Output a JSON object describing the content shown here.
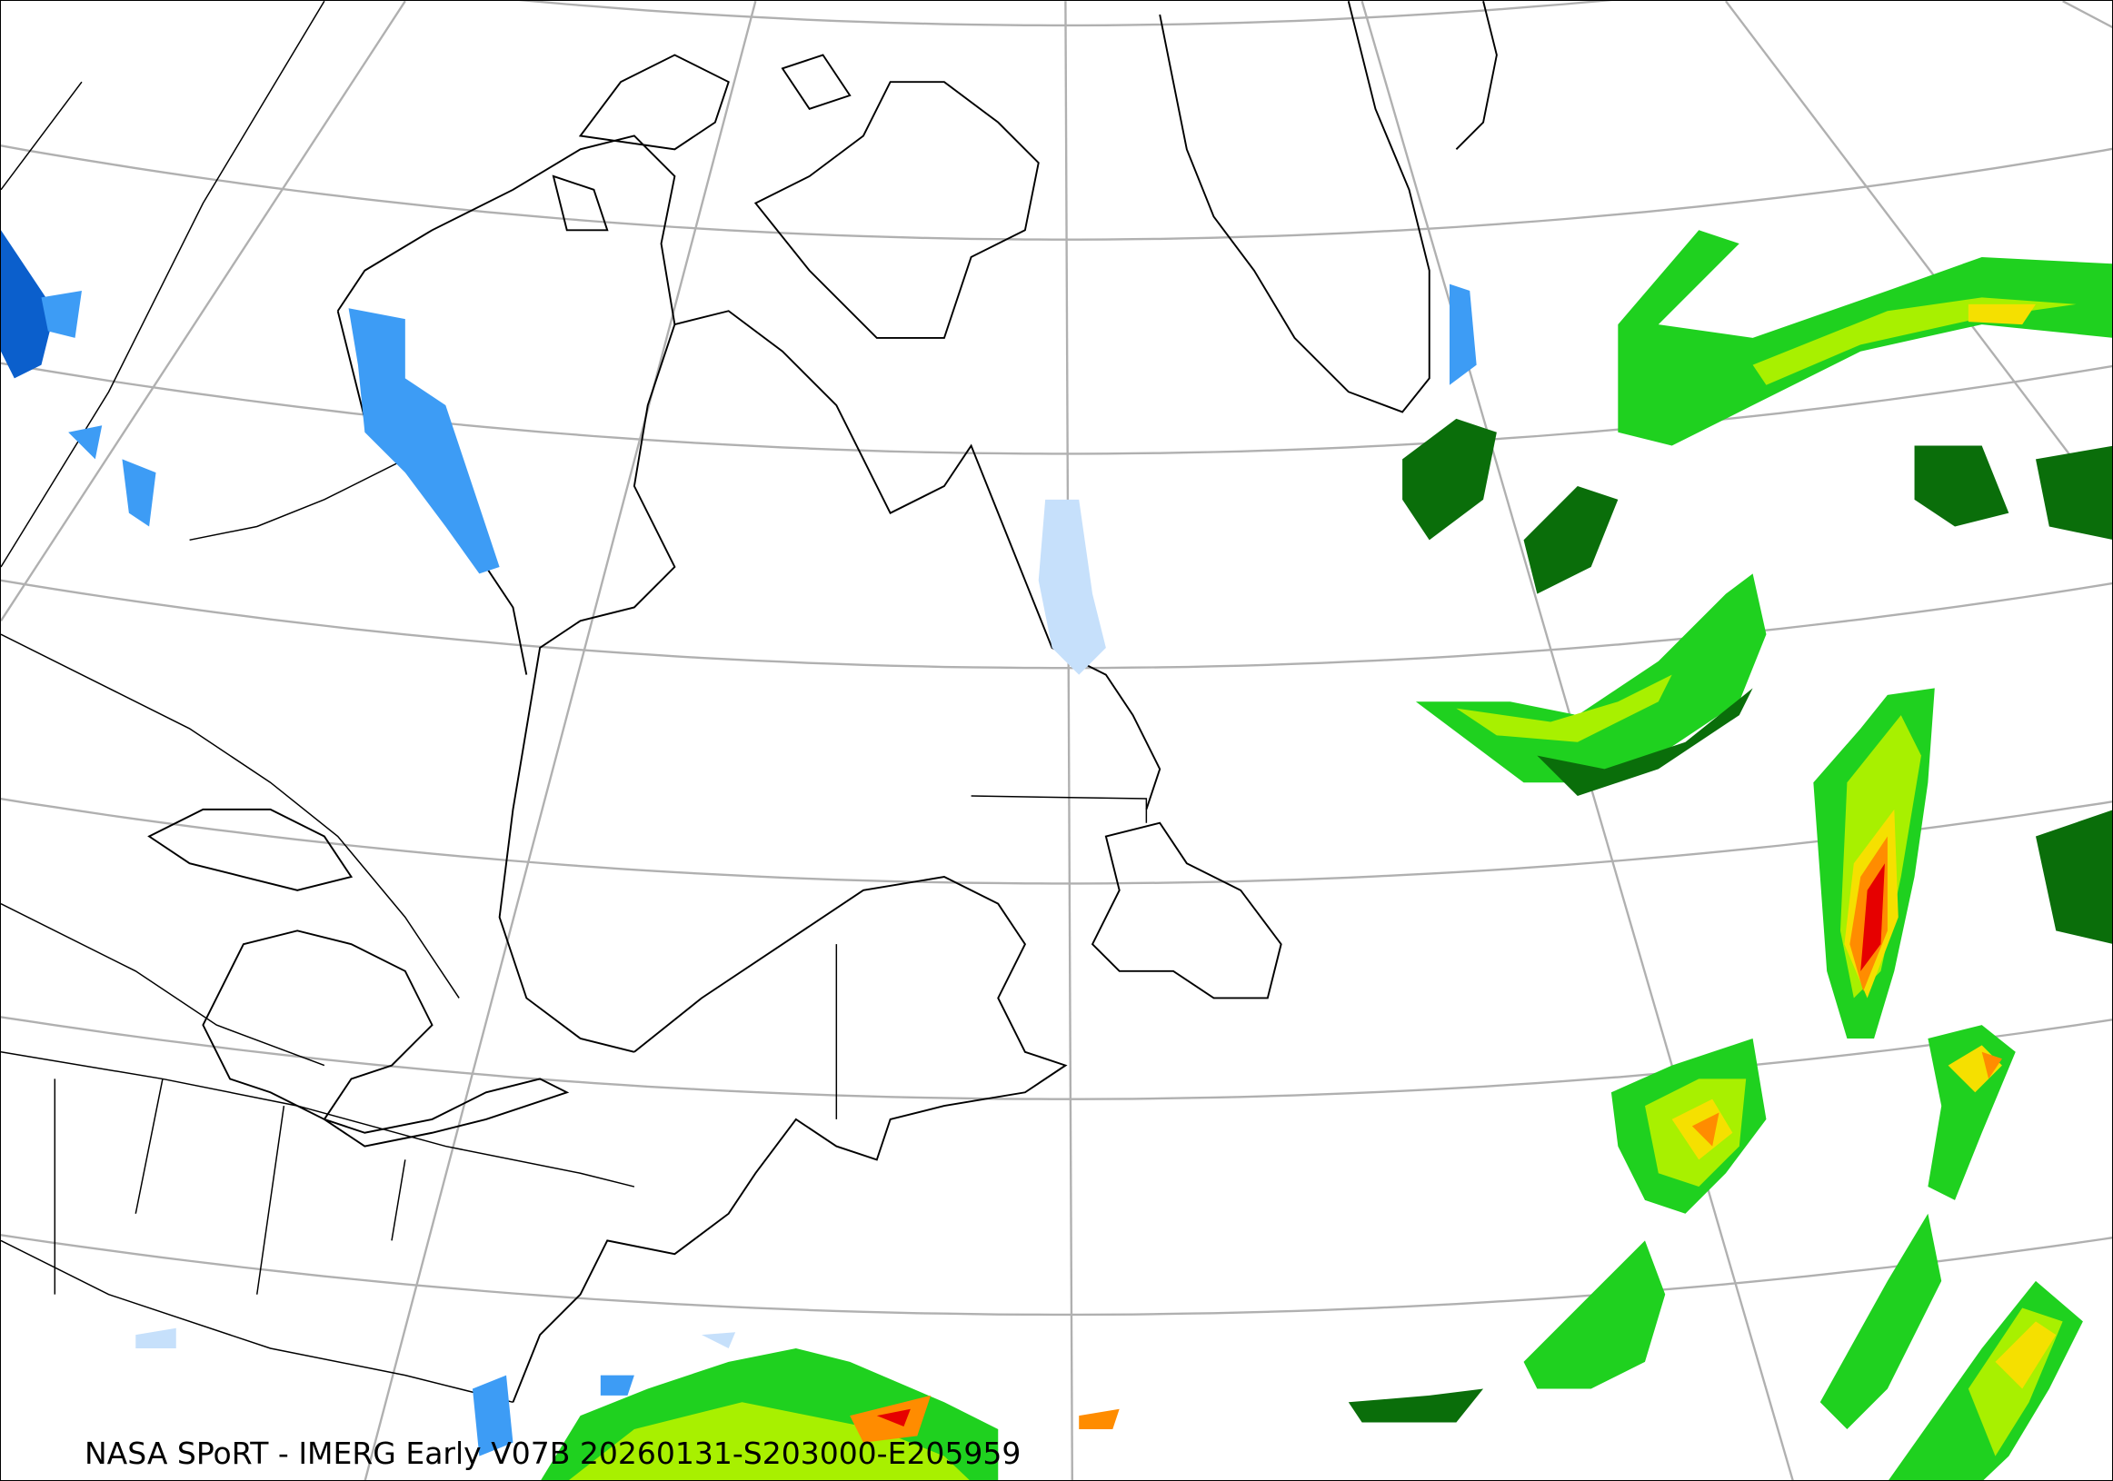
{
  "caption": "NASA SPoRT - IMERG Early V07B 20260131-S203000-E205959",
  "colors": {
    "grid": "#b0b0b0",
    "coastline": "#000000",
    "snow_light": "#c6e0fb",
    "snow_medium": "#3d9cf5",
    "snow_heavy": "#0b5fcc",
    "rain_dark_green": "#0a6e0a",
    "rain_green": "#1fd11f",
    "rain_yellow_green": "#a8f000",
    "rain_yellow": "#f5e000",
    "rain_orange": "#ff8c00",
    "rain_red": "#e60000"
  }
}
